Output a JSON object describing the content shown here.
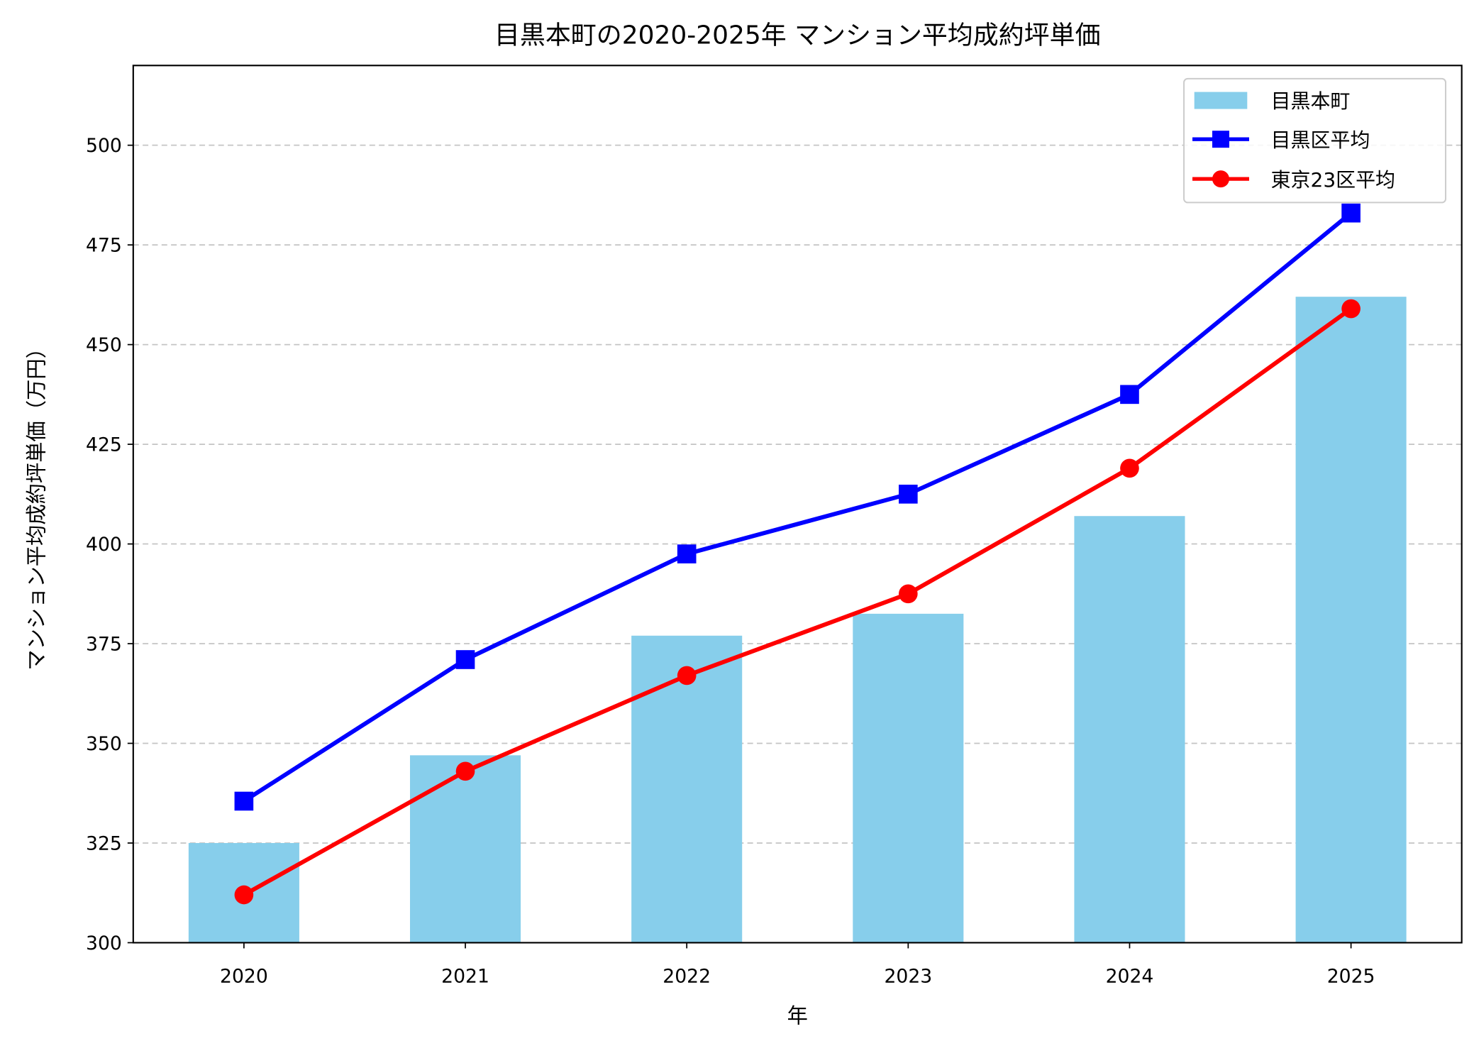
{
  "chart_data": {
    "type": "bar+line",
    "title": "目黒本町の2020-2025年 マンション平均成約坪単価",
    "xlabel": "年",
    "ylabel": "マンション平均成約坪単価（万円）",
    "categories": [
      "2020",
      "2021",
      "2022",
      "2023",
      "2024",
      "2025"
    ],
    "ylim": [
      300,
      520
    ],
    "yticks": [
      300,
      325,
      350,
      375,
      400,
      425,
      450,
      475,
      500
    ],
    "grid": "y-dashed",
    "legend_position": "top-right",
    "series": [
      {
        "name": "目黒本町",
        "kind": "bar",
        "color": "#87ceeb",
        "values": [
          325,
          347,
          377,
          382.5,
          407,
          462
        ]
      },
      {
        "name": "目黒区平均",
        "kind": "line",
        "marker": "square",
        "color": "#0000ff",
        "values": [
          335.5,
          371,
          397.5,
          412.5,
          437.5,
          483
        ]
      },
      {
        "name": "東京23区平均",
        "kind": "line",
        "marker": "circle",
        "color": "#ff0000",
        "values": [
          312,
          343,
          367,
          387.5,
          419,
          459
        ]
      }
    ]
  }
}
